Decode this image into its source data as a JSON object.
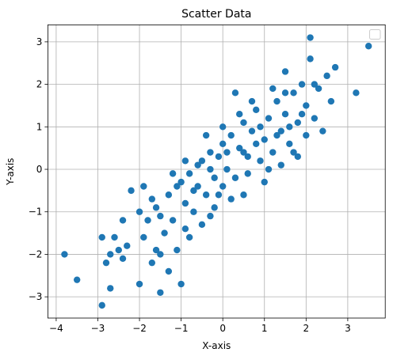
{
  "chart_data": {
    "type": "scatter",
    "title": "Scatter Data",
    "xlabel": "X-axis",
    "ylabel": "Y-axis",
    "xlim": [
      -4.2,
      3.9
    ],
    "ylim": [
      -3.5,
      3.4
    ],
    "xticks": [
      -4,
      -3,
      -2,
      -1,
      0,
      1,
      2,
      3
    ],
    "yticks": [
      -3,
      -2,
      -1,
      0,
      1,
      2,
      3
    ],
    "grid": true,
    "legend": "top-right, empty",
    "colors": {
      "points": "#1f77b4",
      "grid": "#b0b0b0",
      "frame": "#000000"
    },
    "series": [
      {
        "points": [
          [
            -3.8,
            -2.0
          ],
          [
            -3.5,
            -2.6
          ],
          [
            -2.9,
            -3.2
          ],
          [
            -2.9,
            -1.6
          ],
          [
            -2.8,
            -2.2
          ],
          [
            -2.7,
            -2.8
          ],
          [
            -2.6,
            -1.6
          ],
          [
            -2.7,
            -2.0
          ],
          [
            -2.5,
            -1.9
          ],
          [
            -2.4,
            -1.2
          ],
          [
            -2.2,
            -0.5
          ],
          [
            -2.4,
            -2.1
          ],
          [
            -2.3,
            -1.8
          ],
          [
            -2.0,
            -2.7
          ],
          [
            -2.0,
            -1.0
          ],
          [
            -1.9,
            -1.6
          ],
          [
            -1.8,
            -1.2
          ],
          [
            -1.7,
            -2.2
          ],
          [
            -1.6,
            -1.9
          ],
          [
            -1.6,
            -0.9
          ],
          [
            -1.5,
            -2.0
          ],
          [
            -1.5,
            -2.9
          ],
          [
            -1.4,
            -1.5
          ],
          [
            -1.3,
            -2.4
          ],
          [
            -1.3,
            -0.6
          ],
          [
            -1.2,
            -1.2
          ],
          [
            -1.1,
            -1.9
          ],
          [
            -1.0,
            -2.7
          ],
          [
            -1.0,
            -0.3
          ],
          [
            -0.9,
            -1.4
          ],
          [
            -0.9,
            -0.8
          ],
          [
            -0.8,
            -0.1
          ],
          [
            -0.7,
            -1.0
          ],
          [
            -0.6,
            -0.4
          ],
          [
            -0.5,
            0.2
          ],
          [
            -0.4,
            -0.6
          ],
          [
            -0.3,
            -1.1
          ],
          [
            -0.3,
            0.4
          ],
          [
            -0.2,
            -0.2
          ],
          [
            -0.1,
            0.3
          ],
          [
            0.0,
            -0.4
          ],
          [
            0.0,
            0.6
          ],
          [
            0.1,
            0.0
          ],
          [
            0.2,
            0.8
          ],
          [
            0.3,
            -0.2
          ],
          [
            0.4,
            0.5
          ],
          [
            0.5,
            1.1
          ],
          [
            0.5,
            -0.6
          ],
          [
            0.6,
            0.3
          ],
          [
            0.7,
            0.9
          ],
          [
            0.8,
            1.4
          ],
          [
            0.9,
            0.2
          ],
          [
            1.0,
            0.7
          ],
          [
            1.1,
            1.2
          ],
          [
            1.2,
            0.4
          ],
          [
            1.3,
            1.6
          ],
          [
            1.4,
            0.9
          ],
          [
            1.5,
            1.3
          ],
          [
            1.5,
            2.3
          ],
          [
            1.6,
            0.6
          ],
          [
            1.7,
            1.8
          ],
          [
            1.8,
            1.1
          ],
          [
            1.9,
            2.0
          ],
          [
            2.0,
            1.5
          ],
          [
            2.1,
            2.6
          ],
          [
            2.2,
            1.2
          ],
          [
            2.3,
            1.9
          ],
          [
            2.4,
            0.9
          ],
          [
            2.5,
            2.2
          ],
          [
            2.6,
            1.6
          ],
          [
            2.7,
            2.4
          ],
          [
            3.2,
            1.8
          ],
          [
            3.5,
            2.9
          ],
          [
            -1.1,
            -0.4
          ],
          [
            -0.8,
            -1.6
          ],
          [
            -0.6,
            0.1
          ],
          [
            -0.4,
            0.8
          ],
          [
            -0.2,
            -0.9
          ],
          [
            0.0,
            1.0
          ],
          [
            0.2,
            -0.7
          ],
          [
            0.4,
            1.3
          ],
          [
            0.6,
            -0.1
          ],
          [
            0.8,
            0.6
          ],
          [
            1.0,
            -0.3
          ],
          [
            1.2,
            1.9
          ],
          [
            1.4,
            0.1
          ],
          [
            1.6,
            1.0
          ],
          [
            1.8,
            0.3
          ],
          [
            2.0,
            0.8
          ],
          [
            2.2,
            2.0
          ],
          [
            -1.9,
            -0.4
          ],
          [
            -1.7,
            -0.7
          ],
          [
            -1.5,
            -1.1
          ],
          [
            -1.2,
            -0.1
          ],
          [
            -0.9,
            0.2
          ],
          [
            -0.7,
            -0.5
          ],
          [
            -0.5,
            -1.3
          ],
          [
            -0.3,
            0.0
          ],
          [
            -0.1,
            -0.6
          ],
          [
            0.1,
            0.4
          ],
          [
            0.3,
            1.8
          ],
          [
            0.5,
            0.4
          ],
          [
            0.7,
            1.6
          ],
          [
            0.9,
            1.0
          ],
          [
            1.1,
            0.0
          ],
          [
            1.3,
            0.8
          ],
          [
            1.5,
            1.8
          ],
          [
            1.7,
            0.4
          ],
          [
            1.9,
            1.3
          ],
          [
            2.1,
            3.1
          ]
        ]
      }
    ]
  }
}
